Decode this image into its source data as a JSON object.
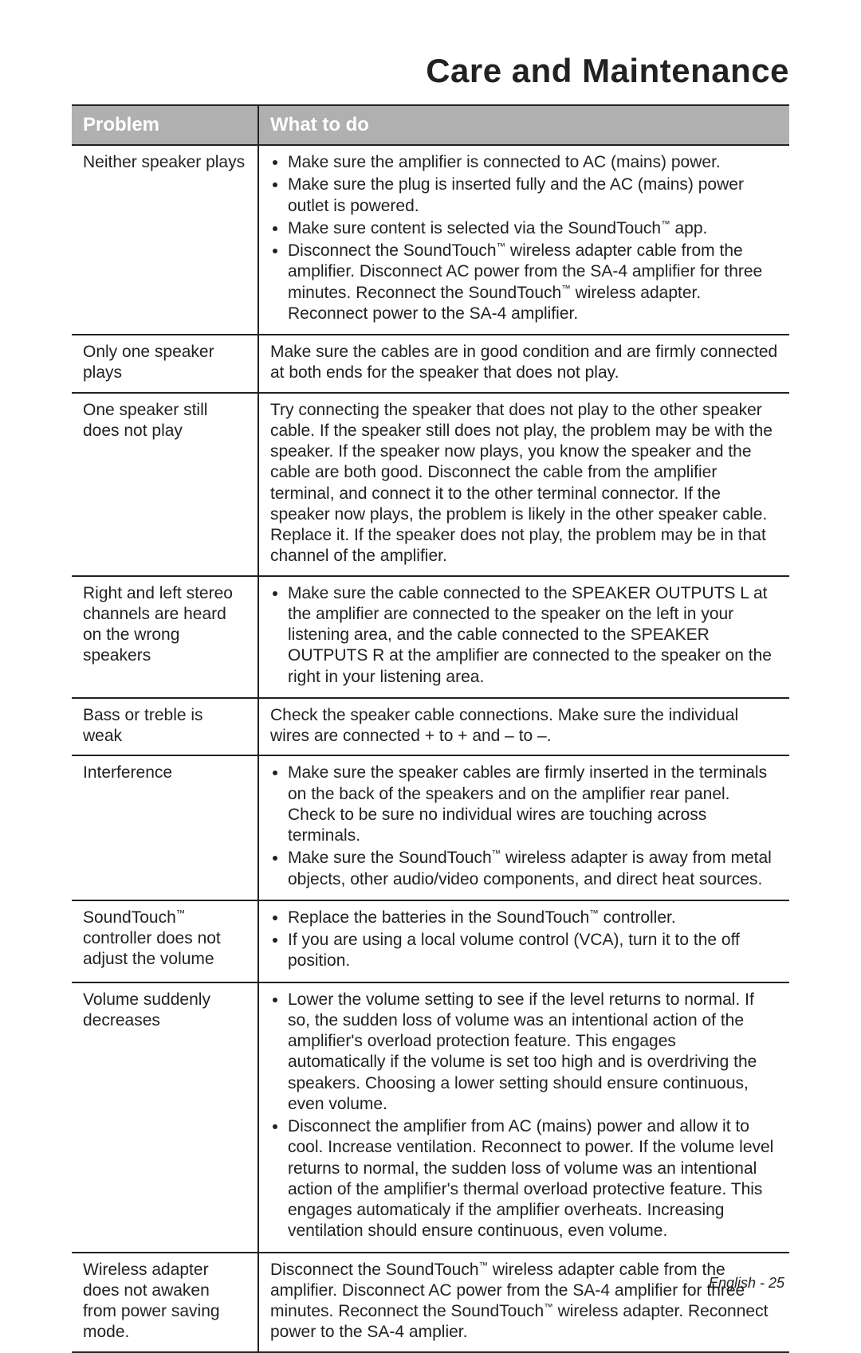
{
  "page": {
    "title": "Care and Maintenance",
    "footer": "English - 25",
    "background_color": "#ffffff",
    "text_color": "#222222",
    "header_bg": "#b0b0b0",
    "header_text_color": "#ffffff",
    "border_color": "#222222",
    "title_fontsize": 42,
    "body_fontsize": 21,
    "header_fontsize": 24
  },
  "table": {
    "columns": [
      "Problem",
      "What to do"
    ],
    "column_widths_pct": [
      26,
      74
    ],
    "rows": [
      {
        "problem": "Neither speaker plays",
        "type": "list",
        "items": [
          "Make sure the amplifier is connected to AC (mains) power.",
          "Make sure the plug is inserted fully and the AC (mains) power outlet is powered.",
          "Make sure content is selected via the SoundTouch™ app.",
          "Disconnect the SoundTouch™ wireless adapter cable from the amplifier. Disconnect AC power from the SA-4 amplifier for three minutes. Reconnect the SoundTouch™ wireless adapter. Reconnect power to the SA-4 amplifier."
        ]
      },
      {
        "problem": "Only one speaker plays",
        "type": "text",
        "text": "Make sure the cables are in good condition and are firmly connected at both ends for the speaker that does not play."
      },
      {
        "problem": "One speaker still does not play",
        "type": "text",
        "text": "Try connecting the speaker that does not play to the other speaker cable. If the speaker still does not play, the problem may be with the speaker. If the speaker now plays, you know the speaker and the cable are both good. Disconnect the cable from the amplifier terminal, and connect it to the other terminal connector. If the speaker now plays, the problem is likely in the other speaker cable. Replace it. If the speaker does not play, the problem may be in that channel of the amplifier."
      },
      {
        "problem": "Right and left stereo channels are heard on the wrong speakers",
        "type": "list",
        "items": [
          "Make sure the cable connected to the SPEAKER OUTPUTS L at the amplifier are connected to the speaker on the left in your listening area, and the cable connected to the SPEAKER OUTPUTS R at the amplifier are connected to the speaker on the right in your listening area."
        ]
      },
      {
        "problem": "Bass or treble is weak",
        "type": "text",
        "text": "Check the speaker cable connections. Make sure the individual wires are connected + to + and – to –."
      },
      {
        "problem": "Interference",
        "type": "list",
        "items": [
          "Make sure the speaker cables are firmly inserted in the terminals on the back of the speakers and on the amplifier rear panel. Check to be sure no individual wires are touching across terminals.",
          "Make sure the SoundTouch™ wireless adapter is away from metal objects, other audio/video components, and direct heat sources."
        ]
      },
      {
        "problem": "SoundTouch™ controller does not adjust the volume",
        "type": "list",
        "items": [
          "Replace the batteries in the SoundTouch™ controller.",
          "If you are using a local volume control (VCA), turn it to the off position."
        ]
      },
      {
        "problem": "Volume suddenly decreases",
        "type": "list",
        "items": [
          "Lower the volume setting to see if the level returns to normal. If so, the sudden loss of volume was an intentional action of the amplifier's overload protection feature. This engages automatically if the volume is set too high and is overdriving the speakers. Choosing a lower setting should ensure continuous, even volume.",
          "Disconnect the amplifier from AC (mains) power and allow it to cool. Increase ventilation. Reconnect to power. If the volume level returns to normal, the sudden loss of volume was an intentional action of the amplifier's thermal overload protective feature. This engages automaticaly if the amplifier overheats. Increasing ventilation should ensure continuous, even volume."
        ]
      },
      {
        "problem": "Wireless adapter does not awaken from power saving mode.",
        "type": "text",
        "text": "Disconnect the SoundTouch™ wireless adapter cable from the amplifier. Disconnect AC power from the SA-4 amplifier for three minutes. Reconnect the SoundTouch™ wireless adapter. Reconnect power to the SA-4 amplier."
      }
    ]
  }
}
